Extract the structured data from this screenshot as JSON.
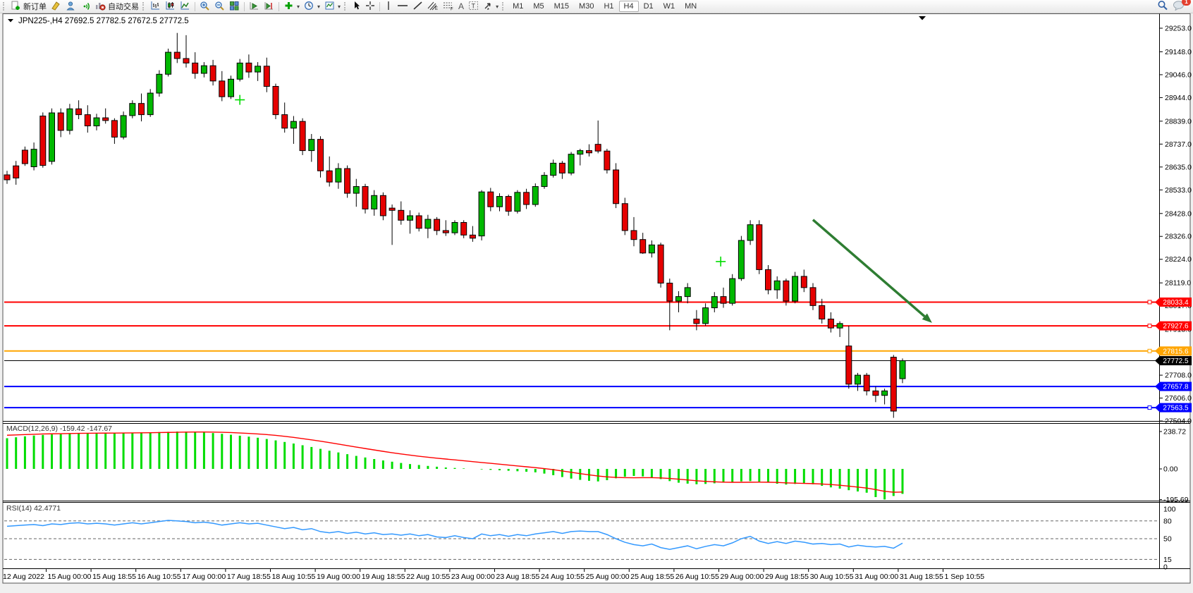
{
  "toolbar": {
    "new_order_label": "新订单",
    "auto_trading_label": "自动交易",
    "timeframes": [
      "M1",
      "M5",
      "M15",
      "M30",
      "H1",
      "H4",
      "D1",
      "W1",
      "MN"
    ],
    "active_timeframe": "H4",
    "notification_badge": "1",
    "icon_names": [
      "new-order-icon",
      "styles-icon",
      "profile-icon",
      "signals-icon",
      "autotrade-icon",
      "bar-chart-icon",
      "candlestick-chart-icon",
      "line-chart-icon",
      "zoom-in-icon",
      "zoom-out-icon",
      "tile-windows-icon",
      "auto-scroll-icon",
      "chart-shift-icon",
      "indicators-icon",
      "periods-icon",
      "templates-icon",
      "cursor-icon",
      "crosshair-icon",
      "vertical-line-icon",
      "horizontal-line-icon",
      "trendline-icon",
      "channel-icon",
      "fibonacci-icon",
      "text-icon",
      "label-icon",
      "arrow-tools-icon",
      "search-icon",
      "chat-icon"
    ]
  },
  "chart_data": {
    "type": "candlestick",
    "symbol": "JPN225-",
    "period": "H4",
    "title_prefix": "JPN225-,H4",
    "ohlc_current": {
      "open": "27692.5",
      "high": "27782.5",
      "low": "27672.5",
      "close": "27772.5"
    },
    "colors": {
      "bull": "#00b800",
      "bear": "#e60000",
      "outline": "#000000",
      "macd_hist": "#00dd00",
      "macd_signal": "#ff0000",
      "rsi_line": "#3399ff",
      "arrow": "#2e7d32",
      "marker": "#00dd00",
      "line_red": "#ff0000",
      "line_orange": "#ffa500",
      "line_blue": "#0000ff",
      "line_black": "#000000"
    },
    "price_axis": [
      29253,
      29148,
      29046,
      28944,
      28839,
      28737,
      28635,
      28533,
      28428,
      28326,
      28224,
      28119,
      28017,
      27913,
      27810,
      27708,
      27606,
      27504
    ],
    "time_axis": [
      "12 Aug 2022",
      "15 Aug 00:00",
      "15 Aug 18:55",
      "16 Aug 10:55",
      "17 Aug 00:00",
      "17 Aug 18:55",
      "18 Aug 10:55",
      "19 Aug 00:00",
      "19 Aug 18:55",
      "22 Aug 10:55",
      "23 Aug 00:00",
      "23 Aug 18:55",
      "24 Aug 10:55",
      "25 Aug 00:00",
      "25 Aug 18:55",
      "26 Aug 10:55",
      "29 Aug 00:00",
      "29 Aug 18:55",
      "30 Aug 10:55",
      "31 Aug 00:00",
      "31 Aug 18:55",
      "1 Sep 10:55"
    ],
    "hlines": [
      {
        "price": 28033.4,
        "label": "28033.4",
        "color": "#ff0000",
        "width": 2,
        "handle": true,
        "current": false
      },
      {
        "price": 27927.6,
        "label": "27927.6",
        "color": "#ff0000",
        "width": 2,
        "handle": true,
        "current": false
      },
      {
        "price": 27815.6,
        "label": "27815.6",
        "color": "#ffa500",
        "width": 2,
        "handle": true,
        "current": false
      },
      {
        "price": 27772.5,
        "label": "27772.5",
        "color": "#000000",
        "width": 1,
        "handle": false,
        "current": true
      },
      {
        "price": 27657.8,
        "label": "27657.8",
        "color": "#0000ff",
        "width": 2,
        "handle": false,
        "current": false
      },
      {
        "price": 27563.5,
        "label": "27563.5",
        "color": "#0000ff",
        "width": 2,
        "handle": true,
        "current": false
      }
    ],
    "candles": [
      [
        28600,
        28618,
        28560,
        28578
      ],
      [
        28640,
        28662,
        28556,
        28586
      ],
      [
        28710,
        28726,
        28640,
        28650
      ],
      [
        28636,
        28744,
        28620,
        28714
      ],
      [
        28862,
        28878,
        28632,
        28642
      ],
      [
        28660,
        28896,
        28646,
        28876
      ],
      [
        28876,
        28896,
        28768,
        28798
      ],
      [
        28798,
        28916,
        28780,
        28894
      ],
      [
        28894,
        28932,
        28848,
        28868
      ],
      [
        28868,
        28910,
        28788,
        28818
      ],
      [
        28818,
        28872,
        28798,
        28854
      ],
      [
        28854,
        28896,
        28828,
        28842
      ],
      [
        28842,
        28852,
        28738,
        28768
      ],
      [
        28768,
        28882,
        28758,
        28864
      ],
      [
        28864,
        28932,
        28852,
        28918
      ],
      [
        28918,
        28962,
        28838,
        28868
      ],
      [
        28868,
        28982,
        28858,
        28964
      ],
      [
        28964,
        29066,
        28948,
        29048
      ],
      [
        29048,
        29162,
        29038,
        29146
      ],
      [
        29146,
        29232,
        29098,
        29118
      ],
      [
        29118,
        29222,
        29078,
        29098
      ],
      [
        29098,
        29146,
        29028,
        29052
      ],
      [
        29052,
        29102,
        29034,
        29086
      ],
      [
        29086,
        29112,
        28998,
        29018
      ],
      [
        29018,
        29062,
        28928,
        28948
      ],
      [
        28948,
        29042,
        28938,
        29026
      ],
      [
        29026,
        29116,
        29016,
        29098
      ],
      [
        29098,
        29136,
        29032,
        29058
      ],
      [
        29058,
        29102,
        29018,
        29084
      ],
      [
        29084,
        29122,
        28968,
        28994
      ],
      [
        28994,
        29006,
        28848,
        28868
      ],
      [
        28868,
        28922,
        28788,
        28808
      ],
      [
        28808,
        28862,
        28738,
        28838
      ],
      [
        28838,
        28852,
        28688,
        28708
      ],
      [
        28708,
        28782,
        28658,
        28758
      ],
      [
        28758,
        28772,
        28588,
        28618
      ],
      [
        28618,
        28682,
        28548,
        28568
      ],
      [
        28568,
        28652,
        28538,
        28628
      ],
      [
        28628,
        28642,
        28498,
        28518
      ],
      [
        28518,
        28582,
        28458,
        28548
      ],
      [
        28548,
        28560,
        28428,
        28448
      ],
      [
        28448,
        28532,
        28418,
        28508
      ],
      [
        28508,
        28522,
        28398,
        28418
      ],
      [
        28452,
        28468,
        28288,
        28442
      ],
      [
        28442,
        28482,
        28378,
        28398
      ],
      [
        28398,
        28442,
        28338,
        28418
      ],
      [
        28418,
        28432,
        28348,
        28362
      ],
      [
        28362,
        28422,
        28318,
        28402
      ],
      [
        28402,
        28412,
        28332,
        28352
      ],
      [
        28352,
        28398,
        28328,
        28342
      ],
      [
        28342,
        28398,
        28332,
        28388
      ],
      [
        28388,
        28398,
        28318,
        28332
      ],
      [
        28332,
        28372,
        28302,
        28318
      ],
      [
        28328,
        28532,
        28308,
        28524
      ],
      [
        28524,
        28542,
        28438,
        28458
      ],
      [
        28458,
        28518,
        28438,
        28504
      ],
      [
        28504,
        28512,
        28418,
        28438
      ],
      [
        28438,
        28532,
        28428,
        28522
      ],
      [
        28522,
        28538,
        28448,
        28468
      ],
      [
        28468,
        28562,
        28458,
        28548
      ],
      [
        28548,
        28612,
        28538,
        28598
      ],
      [
        28598,
        28668,
        28588,
        28652
      ],
      [
        28652,
        28662,
        28582,
        28608
      ],
      [
        28608,
        28702,
        28598,
        28692
      ],
      [
        28692,
        28716,
        28642,
        28708
      ],
      [
        28708,
        28736,
        28682,
        28698
      ],
      [
        28736,
        28842,
        28696,
        28706
      ],
      [
        28706,
        28716,
        28606,
        28622
      ],
      [
        28622,
        28652,
        28452,
        28472
      ],
      [
        28472,
        28498,
        28332,
        28352
      ],
      [
        28352,
        28412,
        28282,
        28312
      ],
      [
        28312,
        28342,
        28248,
        28252
      ],
      [
        28252,
        28308,
        28232,
        28288
      ],
      [
        28288,
        28298,
        28098,
        28118
      ],
      [
        28118,
        28138,
        27908,
        28038
      ],
      [
        28038,
        28082,
        27988,
        28058
      ],
      [
        28058,
        28118,
        28028,
        28098
      ],
      [
        27958,
        27998,
        27908,
        27938
      ],
      [
        27938,
        28028,
        27928,
        28008
      ],
      [
        28008,
        28078,
        27988,
        28058
      ],
      [
        28058,
        28098,
        28008,
        28028
      ],
      [
        28028,
        28158,
        28018,
        28138
      ],
      [
        28138,
        28328,
        28128,
        28308
      ],
      [
        28308,
        28398,
        28288,
        28378
      ],
      [
        28378,
        28398,
        28158,
        28178
      ],
      [
        28178,
        28198,
        28068,
        28088
      ],
      [
        28088,
        28148,
        28048,
        28128
      ],
      [
        28128,
        28138,
        28018,
        28038
      ],
      [
        28038,
        28168,
        28028,
        28148
      ],
      [
        28148,
        28178,
        28078,
        28098
      ],
      [
        28098,
        28118,
        27998,
        28018
      ],
      [
        28018,
        28048,
        27938,
        27958
      ],
      [
        27958,
        27988,
        27898,
        27918
      ],
      [
        27918,
        27948,
        27878,
        27938
      ],
      [
        27838,
        27928,
        27648,
        27668
      ],
      [
        27668,
        27718,
        27638,
        27708
      ],
      [
        27708,
        27718,
        27618,
        27638
      ],
      [
        27638,
        27658,
        27588,
        27618
      ],
      [
        27618,
        27648,
        27578,
        27638
      ],
      [
        27788,
        27798,
        27518,
        27548
      ],
      [
        27692.5,
        27782.5,
        27672.5,
        27772.5
      ]
    ],
    "indicators": {
      "macd": {
        "label": "MACD(12,26,9)",
        "values_text": "-159.42 -147.67",
        "axis": [
          {
            "v": 238.72,
            "label": "238.72"
          },
          {
            "v": 0,
            "label": "0.00"
          },
          {
            "v": -195.69,
            "label": "-195.69"
          }
        ],
        "hist": [
          196,
          202,
          208,
          213,
          217,
          220,
          222,
          224,
          226,
          227,
          228,
          229,
          230,
          231,
          232,
          233,
          234,
          235.5,
          237,
          238.72,
          238,
          236,
          233,
          229,
          224,
          218,
          212,
          206,
          199,
          191,
          182,
          172,
          162,
          151,
          140,
          128,
          116,
          105,
          94,
          83,
          73,
          63,
          54,
          46,
          38,
          31,
          25,
          19,
          14,
          9,
          6,
          3,
          0,
          -3,
          -6,
          -9,
          -12,
          -15,
          -18,
          -22,
          -30,
          -40,
          -52,
          -62,
          -70,
          -76,
          -80,
          -72,
          -60,
          -50,
          -45,
          -48,
          -55,
          -65,
          -78,
          -88,
          -94,
          -98,
          -96,
          -92,
          -88,
          -85,
          -80,
          -78,
          -82,
          -88,
          -95,
          -100,
          -96,
          -92,
          -98,
          -108,
          -118,
          -126,
          -136,
          -144,
          -152,
          -180,
          -195.69,
          -173,
          -159.42
        ],
        "signal": [
          215,
          217,
          219,
          221,
          223,
          224,
          225,
          226,
          227,
          227.5,
          228,
          228.5,
          229,
          229.5,
          230,
          230.5,
          231,
          232,
          233,
          234,
          235,
          235.5,
          235.5,
          235,
          234,
          232,
          229.5,
          226.5,
          223,
          219,
          214,
          208,
          201,
          193.5,
          185.5,
          177,
          168,
          158.5,
          149,
          139.5,
          130,
          121,
          112,
          103.5,
          95.5,
          88,
          81,
          74.5,
          68.5,
          63,
          57.5,
          52,
          46.5,
          41,
          35.5,
          30,
          24.5,
          19,
          13.5,
          8,
          2,
          -5,
          -13,
          -21.5,
          -30,
          -38,
          -45.5,
          -51,
          -54.5,
          -56,
          -56.5,
          -56,
          -56,
          -57.5,
          -61,
          -65.5,
          -70.5,
          -75.5,
          -79.5,
          -82.5,
          -84.5,
          -85.5,
          -85.5,
          -85,
          -84.5,
          -85,
          -86.5,
          -89,
          -91,
          -92.5,
          -94,
          -96.5,
          -100,
          -104.5,
          -110,
          -116,
          -122.5,
          -132,
          -143,
          -149,
          -147.67
        ]
      },
      "rsi": {
        "label": "RSI(14)",
        "value_text": "42.4771",
        "axis": [
          {
            "v": 100,
            "label": "100"
          },
          {
            "v": 80,
            "label": "80"
          },
          {
            "v": 50,
            "label": "50"
          },
          {
            "v": 15,
            "label": "15"
          },
          {
            "v": 0,
            "label": "0"
          }
        ],
        "levels": [
          80,
          50,
          15
        ],
        "series": [
          71,
          72,
          73,
          74,
          72,
          75,
          74,
          76,
          77,
          75,
          76,
          75,
          73,
          75,
          77,
          75,
          77,
          79,
          81,
          80,
          79,
          77,
          78,
          76,
          73,
          75,
          77,
          75,
          76,
          73,
          70,
          67,
          69,
          65,
          67,
          62,
          60,
          62,
          59,
          61,
          58,
          60,
          57,
          58,
          56,
          58,
          55,
          57,
          53,
          52,
          55,
          52,
          50,
          58,
          55,
          57,
          54,
          57,
          55,
          58,
          60,
          62,
          59,
          62,
          63,
          62,
          62,
          57,
          50,
          44,
          40,
          38,
          41,
          35,
          32,
          35,
          38,
          33,
          37,
          40,
          38,
          43,
          50,
          54,
          46,
          42,
          45,
          42,
          46,
          44,
          41,
          42,
          40,
          41,
          36,
          39,
          37,
          36,
          37,
          34,
          42.4771
        ]
      }
    },
    "arrow": {
      "from_bar": 90,
      "from_price": 28400,
      "to_bar": 103.3,
      "to_price": 27941
    },
    "markers": [
      {
        "bar": 26,
        "price": 28934
      },
      {
        "bar": 79.7,
        "price": 28214
      }
    ]
  }
}
